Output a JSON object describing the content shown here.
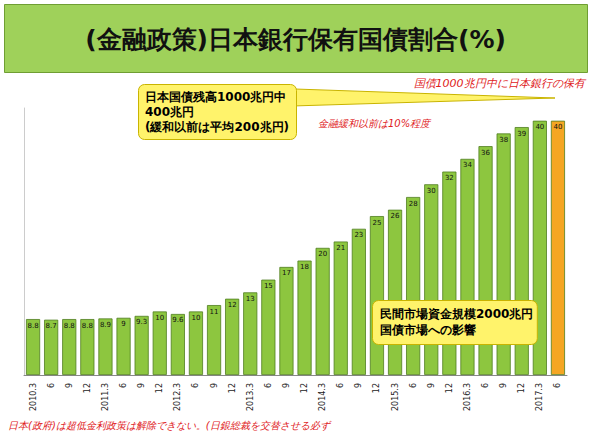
{
  "chart_data": {
    "type": "bar",
    "title": "(金融政策)日本銀行保有国債割合(%)",
    "categories": [
      "2010.3",
      "6",
      "9",
      "12",
      "2011.3",
      "6",
      "9",
      "12",
      "2012.3",
      "6",
      "9",
      "12",
      "2013.3",
      "6",
      "9",
      "12",
      "2014.3",
      "6",
      "9",
      "12",
      "2015.3",
      "6",
      "9",
      "12",
      "2016.3",
      "6",
      "9",
      "12",
      "2017.3",
      "6"
    ],
    "values": [
      8.8,
      8.7,
      8.8,
      8.8,
      8.9,
      9,
      9.3,
      10,
      9.6,
      10,
      11,
      12,
      13,
      15,
      17,
      18,
      20,
      21,
      23,
      25,
      26,
      28,
      30,
      32,
      34,
      36,
      38,
      39,
      40,
      40
    ],
    "colors": [
      "#8dc63f",
      "#8dc63f",
      "#8dc63f",
      "#8dc63f",
      "#8dc63f",
      "#8dc63f",
      "#8dc63f",
      "#8dc63f",
      "#8dc63f",
      "#8dc63f",
      "#8dc63f",
      "#8dc63f",
      "#8dc63f",
      "#8dc63f",
      "#8dc63f",
      "#8dc63f",
      "#8dc63f",
      "#8dc63f",
      "#8dc63f",
      "#8dc63f",
      "#8dc63f",
      "#8dc63f",
      "#8dc63f",
      "#8dc63f",
      "#8dc63f",
      "#8dc63f",
      "#8dc63f",
      "#8dc63f",
      "#8dc63f",
      "#f5a623"
    ],
    "ylim": [
      0,
      42
    ],
    "yticks": [],
    "grid": false,
    "data_labels": true,
    "tick_labels": "x",
    "annotations": [
      {
        "text": "日本国債残高1000兆円中\n400兆円\n(緩和以前は平均200兆円)",
        "color": "#fff36b"
      },
      {
        "text": "民間市場資金規模2000兆円\n国債市場への影響",
        "color": "#fff36b"
      },
      {
        "text": "国債1000兆円中に日本銀行の保有",
        "color": "#e0201b"
      },
      {
        "text": "金融緩和以前は10%程度",
        "color": "#e0201b"
      },
      {
        "text": "日本(政府)は超低金利政策は解除できない。(日銀総裁を交替させる必ず",
        "color": "#e0201b"
      }
    ]
  }
}
